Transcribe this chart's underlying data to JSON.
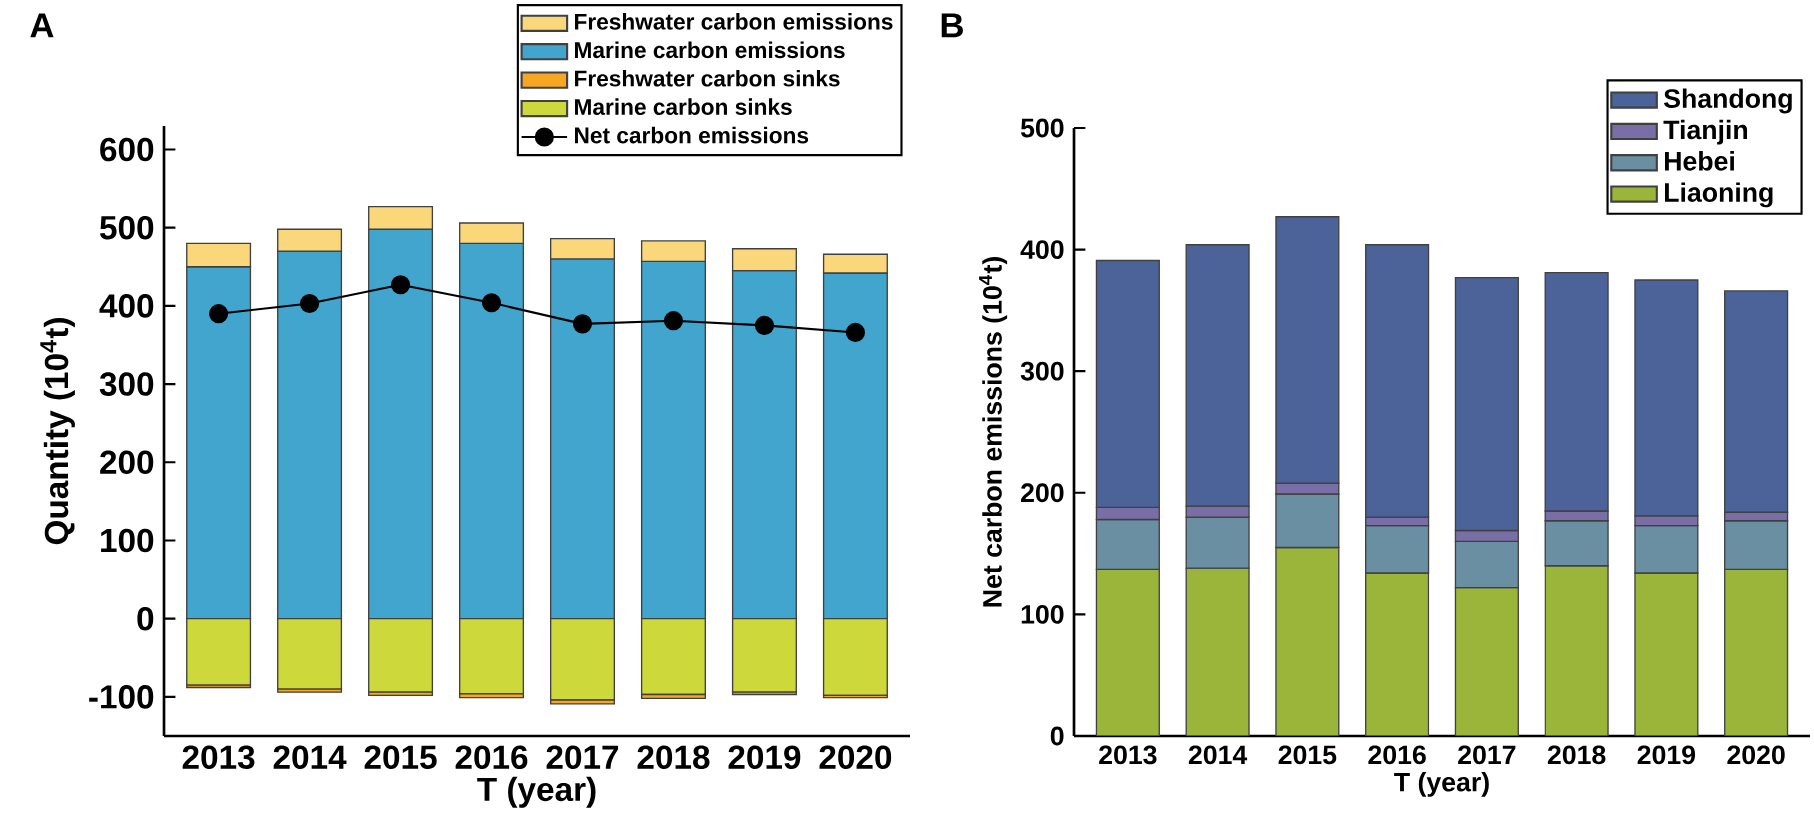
{
  "chart_data": [
    {
      "type": "bar",
      "title": "A",
      "xlabel": "T (year)",
      "ylabel": "Quantity (10$^{4}$t)",
      "categories": [
        "2013",
        "2014",
        "2015",
        "2016",
        "2017",
        "2018",
        "2019",
        "2020"
      ],
      "stacked": true,
      "legend": "top right",
      "grid": false,
      "ylim": [
        -150,
        630
      ],
      "yticks": [
        -100,
        0,
        100,
        200,
        300,
        400,
        500,
        600
      ],
      "series": [
        {
          "name": "Marine carbon emissions",
          "color": "#41a5cd",
          "values": [
            450,
            470,
            498,
            480,
            460,
            457,
            445,
            442
          ]
        },
        {
          "name": "Freshwater carbon emissions",
          "color": "#fad77b",
          "values": [
            30,
            28,
            29,
            26,
            26,
            26,
            28,
            24
          ]
        },
        {
          "name": "Marine carbon sinks",
          "color": "#cdd93a",
          "values": [
            -85,
            -90,
            -94,
            -96,
            -104,
            -97,
            -94,
            -98
          ]
        },
        {
          "name": "Freshwater  carbon sinks",
          "color": "#f5a623",
          "values": [
            -3,
            -4,
            -4,
            -5,
            -5,
            -5,
            -3,
            -3
          ]
        },
        {
          "name": "Net carbon emissions",
          "type": "line",
          "marker": "circle",
          "color": "#000000",
          "values": [
            390,
            403,
            427,
            404,
            377,
            381,
            375,
            366
          ]
        }
      ]
    },
    {
      "type": "bar",
      "title": "B",
      "xlabel": "T (year)",
      "ylabel": "Net carbon emissions (10$^{4}$t)",
      "categories": [
        "2013",
        "2014",
        "2015",
        "2016",
        "2017",
        "2018",
        "2019",
        "2020"
      ],
      "stacked": true,
      "legend": "top right",
      "grid": false,
      "ylim": [
        0,
        500
      ],
      "yticks": [
        0,
        100,
        200,
        300,
        400,
        500
      ],
      "series": [
        {
          "name": "Liaoning",
          "color": "#9bb53b",
          "values": [
            137,
            138,
            155,
            134,
            122,
            140,
            134,
            137
          ]
        },
        {
          "name": "Hebei",
          "color": "#6a8fa3",
          "values": [
            41,
            42,
            44,
            39,
            38,
            37,
            39,
            40
          ]
        },
        {
          "name": "Tianjin",
          "color": "#7a6ea6",
          "values": [
            10,
            9,
            9,
            7,
            9,
            8,
            8,
            7
          ]
        },
        {
          "name": "Shandong",
          "color": "#4b6399",
          "values": [
            203,
            215,
            219,
            224,
            208,
            196,
            194,
            182
          ]
        }
      ]
    }
  ]
}
